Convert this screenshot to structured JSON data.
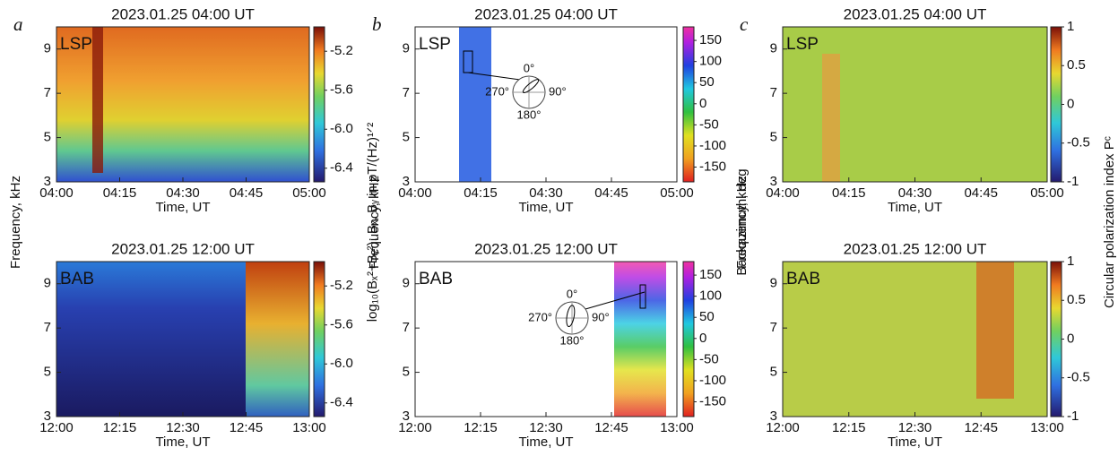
{
  "chart_data": [
    {
      "type": "heatmap",
      "panel_label": "a",
      "title": "2023.01.25 04:00 UT",
      "station": "LSP",
      "xticks": [
        "04:00",
        "04:15",
        "04:30",
        "04:45",
        "05:00"
      ],
      "x_label": "Time, UT",
      "ylim": [
        3,
        10
      ],
      "yticks": [
        3,
        5,
        7,
        9
      ],
      "y_label": "Frequency, kHz",
      "colorbar": {
        "lim": [
          -6.54,
          -4.95
        ],
        "ticks": [
          -5.2,
          -5.6,
          {
            "value": -6,
            "label": "-6.0"
          },
          -6.4
        ],
        "label": "log₁₀(Bₓ²+Bᵧ²); Bₓ, Bᵧ in pT/(Hz)¹ᐟ²"
      }
    },
    {
      "type": "heatmap",
      "title": "2023.01.25 12:00 UT",
      "station": "BAB",
      "xticks": [
        "12:00",
        "12:15",
        "12:30",
        "12:45",
        "13:00"
      ],
      "x_label": "Time, UT",
      "ylim": [
        3,
        10
      ],
      "yticks": [
        3,
        5,
        7,
        9
      ],
      "colorbar": {
        "lim": [
          -6.54,
          -4.95
        ],
        "ticks": [
          -5.2,
          -5.6,
          {
            "value": -6,
            "label": "-6.0"
          },
          -6.4
        ]
      }
    },
    {
      "type": "heatmap",
      "panel_label": "b",
      "title": "2023.01.25 04:00 UT",
      "station": "LSP",
      "xticks": [
        "04:00",
        "04:15",
        "04:30",
        "04:45",
        "05:00"
      ],
      "x_label": "Time, UT",
      "ylim": [
        3,
        10
      ],
      "yticks": [
        3,
        5,
        7,
        9
      ],
      "y_label": "Frequency, kHz",
      "colorbar": {
        "lim": [
          -185,
          182
        ],
        "ticks": [
          150,
          100,
          50,
          0,
          -50,
          -100,
          -150
        ],
        "label": "Backazimuth, deg"
      },
      "inset": [
        "0°",
        "90°",
        "180°",
        "270°"
      ]
    },
    {
      "type": "heatmap",
      "title": "2023.01.25 12:00 UT",
      "station": "BAB",
      "xticks": [
        "12:00",
        "12:15",
        "12:30",
        "12:45",
        "13:00"
      ],
      "x_label": "Time, UT",
      "ylim": [
        3,
        10
      ],
      "yticks": [
        3,
        5,
        7,
        9
      ],
      "colorbar": {
        "lim": [
          -185,
          182
        ],
        "ticks": [
          150,
          100,
          50,
          0,
          -50,
          -100,
          -150
        ]
      },
      "inset": [
        "0°",
        "90°",
        "180°",
        "270°"
      ]
    },
    {
      "type": "heatmap",
      "panel_label": "c",
      "title": "2023.01.25 04:00 UT",
      "station": "LSP",
      "xticks": [
        "04:00",
        "04:15",
        "04:30",
        "04:45",
        "05:00"
      ],
      "x_label": "Time, UT",
      "ylim": [
        3,
        10
      ],
      "yticks": [
        3,
        5,
        7,
        9
      ],
      "y_label": "Frequency, kHz",
      "colorbar": {
        "lim": [
          -1,
          1
        ],
        "ticks": [
          1,
          0.5,
          0,
          -0.5,
          -1
        ],
        "label": "Circular polarization index Pᶜ"
      }
    },
    {
      "type": "heatmap",
      "title": "2023.01.25 12:00 UT",
      "station": "BAB",
      "xticks": [
        "12:00",
        "12:15",
        "12:30",
        "12:45",
        "13:00"
      ],
      "x_label": "Time, UT",
      "ylim": [
        3,
        10
      ],
      "yticks": [
        3,
        5,
        7,
        9
      ],
      "colorbar": {
        "lim": [
          -1,
          1
        ],
        "ticks": [
          1,
          0.5,
          0,
          -0.5,
          -1
        ]
      }
    }
  ]
}
